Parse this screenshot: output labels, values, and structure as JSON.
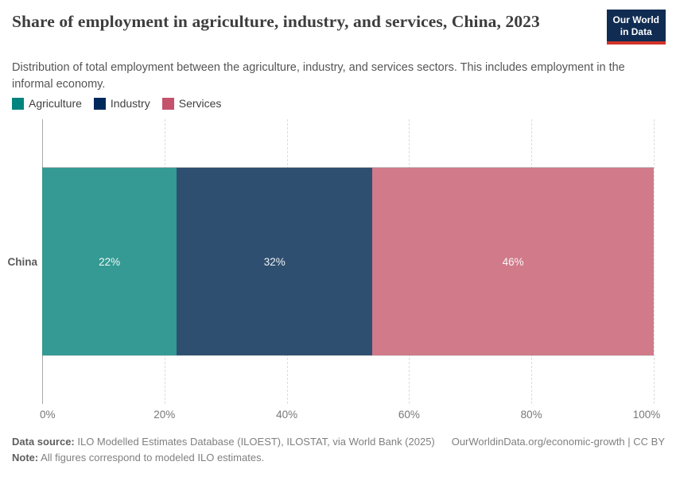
{
  "header": {
    "title": "Share of employment in agriculture, industry, and services, China, 2023",
    "subtitle": "Distribution of total employment between the agriculture, industry, and services sectors. This includes employment in the informal economy.",
    "logo": {
      "line1": "Our World",
      "line2": "in Data",
      "bg_color": "#102c52",
      "accent_color": "#d2342b"
    }
  },
  "chart_data": {
    "type": "bar",
    "stacked": true,
    "orientation": "horizontal",
    "title": "Share of employment in agriculture, industry, and services, China, 2023",
    "categories": [
      "China"
    ],
    "series": [
      {
        "name": "Agriculture",
        "values": [
          22
        ],
        "legend_color": "#00847e",
        "bar_color": "#349a93",
        "value_label": "22%"
      },
      {
        "name": "Industry",
        "values": [
          32
        ],
        "legend_color": "#00295b",
        "bar_color": "#2e4f70",
        "value_label": "32%"
      },
      {
        "name": "Services",
        "values": [
          46
        ],
        "legend_color": "#c4526d",
        "bar_color": "#d07a8a",
        "value_label": "46%"
      }
    ],
    "xlim": [
      0,
      100
    ],
    "x_ticks": [
      "0%",
      "20%",
      "40%",
      "60%",
      "80%",
      "100%"
    ],
    "grid": "vertical-dashed",
    "legend_position": "top-left",
    "entity_label": "China"
  },
  "footer": {
    "source_label": "Data source:",
    "source_text": " ILO Modelled Estimates Database (ILOEST), ILOSTAT, via World Bank (2025)",
    "link": "OurWorldinData.org/economic-growth | CC BY",
    "note_label": "Note:",
    "note_text": " All figures correspond to modeled ILO estimates."
  }
}
